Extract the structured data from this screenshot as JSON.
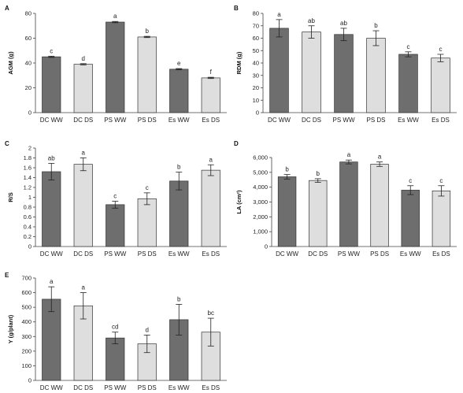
{
  "chart_data": [
    {
      "type": "bar",
      "panel": "A",
      "ylabel": "AGM (g)",
      "categories": [
        "DC WW",
        "DC DS",
        "PS WW",
        "PS DS",
        "Es WW",
        "Es DS"
      ],
      "values": [
        45,
        39,
        73,
        61,
        35,
        28
      ],
      "errors": [
        0.5,
        0.5,
        0.5,
        0.5,
        0.5,
        0.5
      ],
      "letters": [
        "c",
        "d",
        "a",
        "b",
        "e",
        "f"
      ],
      "ylim": [
        0,
        80
      ],
      "ticks": [
        0,
        20,
        40,
        60,
        80
      ],
      "tick_labels": [
        "0",
        "20",
        "40",
        "60",
        "80"
      ],
      "colors": [
        "#6e6e6e",
        "#dedede",
        "#6e6e6e",
        "#dedede",
        "#6e6e6e",
        "#dedede"
      ]
    },
    {
      "type": "bar",
      "panel": "B",
      "ylabel": "RDM (g)",
      "categories": [
        "DC WW",
        "DC DS",
        "PS WW",
        "PS DS",
        "Es WW",
        "Es DS"
      ],
      "values": [
        68,
        65,
        63,
        60,
        47,
        44
      ],
      "errors": [
        7,
        5,
        5,
        6,
        2,
        3
      ],
      "letters": [
        "a",
        "ab",
        "ab",
        "b",
        "c",
        "c"
      ],
      "ylim": [
        0,
        80
      ],
      "ticks": [
        0,
        10,
        20,
        30,
        40,
        50,
        60,
        70,
        80
      ],
      "tick_labels": [
        "0",
        "10",
        "20",
        "30",
        "40",
        "50",
        "60",
        "70",
        "80"
      ],
      "colors": [
        "#6e6e6e",
        "#dedede",
        "#6e6e6e",
        "#dedede",
        "#6e6e6e",
        "#dedede"
      ]
    },
    {
      "type": "bar",
      "panel": "C",
      "ylabel": "R/S",
      "categories": [
        "DC WW",
        "DC DS",
        "PS WW",
        "PS DS",
        "Es WW",
        "Es DS"
      ],
      "values": [
        1.52,
        1.67,
        0.85,
        0.97,
        1.33,
        1.55
      ],
      "errors": [
        0.17,
        0.13,
        0.07,
        0.12,
        0.18,
        0.11
      ],
      "letters": [
        "ab",
        "a",
        "c",
        "c",
        "b",
        "a"
      ],
      "ylim": [
        0,
        2
      ],
      "ticks": [
        0,
        0.2,
        0.4,
        0.6,
        0.8,
        1.0,
        1.2,
        1.4,
        1.6,
        1.8,
        2.0
      ],
      "tick_labels": [
        "0",
        "0.2",
        "0.4",
        "0.6",
        "0.8",
        "1",
        "1.2",
        "1.4",
        "1.6",
        "1.8",
        "2"
      ],
      "colors": [
        "#6e6e6e",
        "#dedede",
        "#6e6e6e",
        "#dedede",
        "#6e6e6e",
        "#dedede"
      ]
    },
    {
      "type": "bar",
      "panel": "D",
      "ylabel": "LA (cm²)",
      "categories": [
        "DC WW",
        "DC DS",
        "PS WW",
        "PS DS",
        "Es WW",
        "Es DS"
      ],
      "values": [
        4700,
        4450,
        5700,
        5550,
        3800,
        3750
      ],
      "errors": [
        150,
        120,
        130,
        150,
        300,
        350
      ],
      "letters": [
        "b",
        "b",
        "a",
        "a",
        "c",
        "c"
      ],
      "ylim": [
        0,
        6000
      ],
      "ticks": [
        0,
        1000,
        2000,
        3000,
        4000,
        5000,
        6000
      ],
      "tick_labels": [
        "0",
        "1,000",
        "2,000",
        "3,000",
        "4,000",
        "5,000",
        "6,000"
      ],
      "colors": [
        "#6e6e6e",
        "#dedede",
        "#6e6e6e",
        "#dedede",
        "#6e6e6e",
        "#dedede"
      ]
    },
    {
      "type": "bar",
      "panel": "E",
      "ylabel": "Y (g/plant)",
      "categories": [
        "DC WW",
        "DC DS",
        "PS WW",
        "PS DS",
        "Es WW",
        "Es DS"
      ],
      "values": [
        555,
        510,
        290,
        250,
        415,
        330
      ],
      "errors": [
        85,
        90,
        40,
        60,
        105,
        95
      ],
      "letters": [
        "a",
        "a",
        "cd",
        "d",
        "b",
        "bc"
      ],
      "ylim": [
        0,
        700
      ],
      "ticks": [
        0,
        100,
        200,
        300,
        400,
        500,
        600,
        700
      ],
      "tick_labels": [
        "0",
        "100",
        "200",
        "300",
        "400",
        "500",
        "600",
        "700"
      ],
      "colors": [
        "#6e6e6e",
        "#dedede",
        "#6e6e6e",
        "#dedede",
        "#6e6e6e",
        "#dedede"
      ]
    }
  ]
}
